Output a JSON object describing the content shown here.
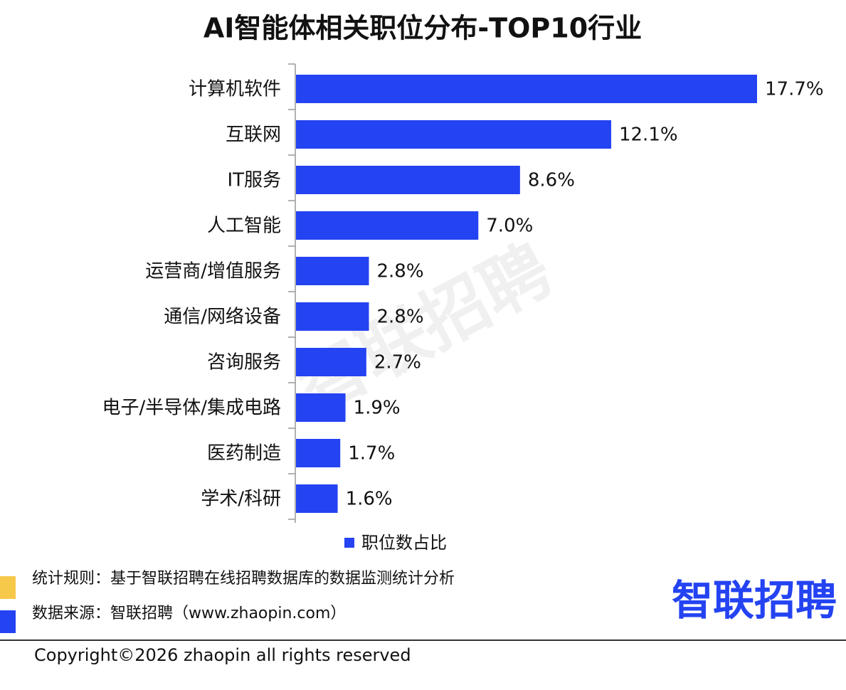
{
  "chart_data": {
    "type": "bar",
    "orientation": "horizontal",
    "title": "AI智能体相关职位分布-TOP10行业",
    "categories": [
      "计算机软件",
      "互联网",
      "IT服务",
      "人工智能",
      "运营商/增值服务",
      "通信/网络设备",
      "咨询服务",
      "电子/半导体/集成电路",
      "医药制造",
      "学术/科研"
    ],
    "series": [
      {
        "name": "职位数占比",
        "color": "#2443f2",
        "values": [
          17.7,
          12.1,
          8.6,
          7.0,
          2.8,
          2.8,
          2.7,
          1.9,
          1.7,
          1.6
        ],
        "value_labels": [
          "17.7%",
          "12.1%",
          "8.6%",
          "7.0%",
          "2.8%",
          "2.8%",
          "2.7%",
          "1.9%",
          "1.7%",
          "1.6%"
        ]
      }
    ],
    "legend": "bottom"
  },
  "watermark": "智联招聘",
  "footer": {
    "rule": "统计规则：基于智联招聘在线招聘数据库的数据监测统计分析",
    "source": "数据来源：智联招聘（www.zhaopin.com）",
    "logo": "智联招聘",
    "copyright": "Copyright©2026 zhaopin all rights reserved"
  }
}
